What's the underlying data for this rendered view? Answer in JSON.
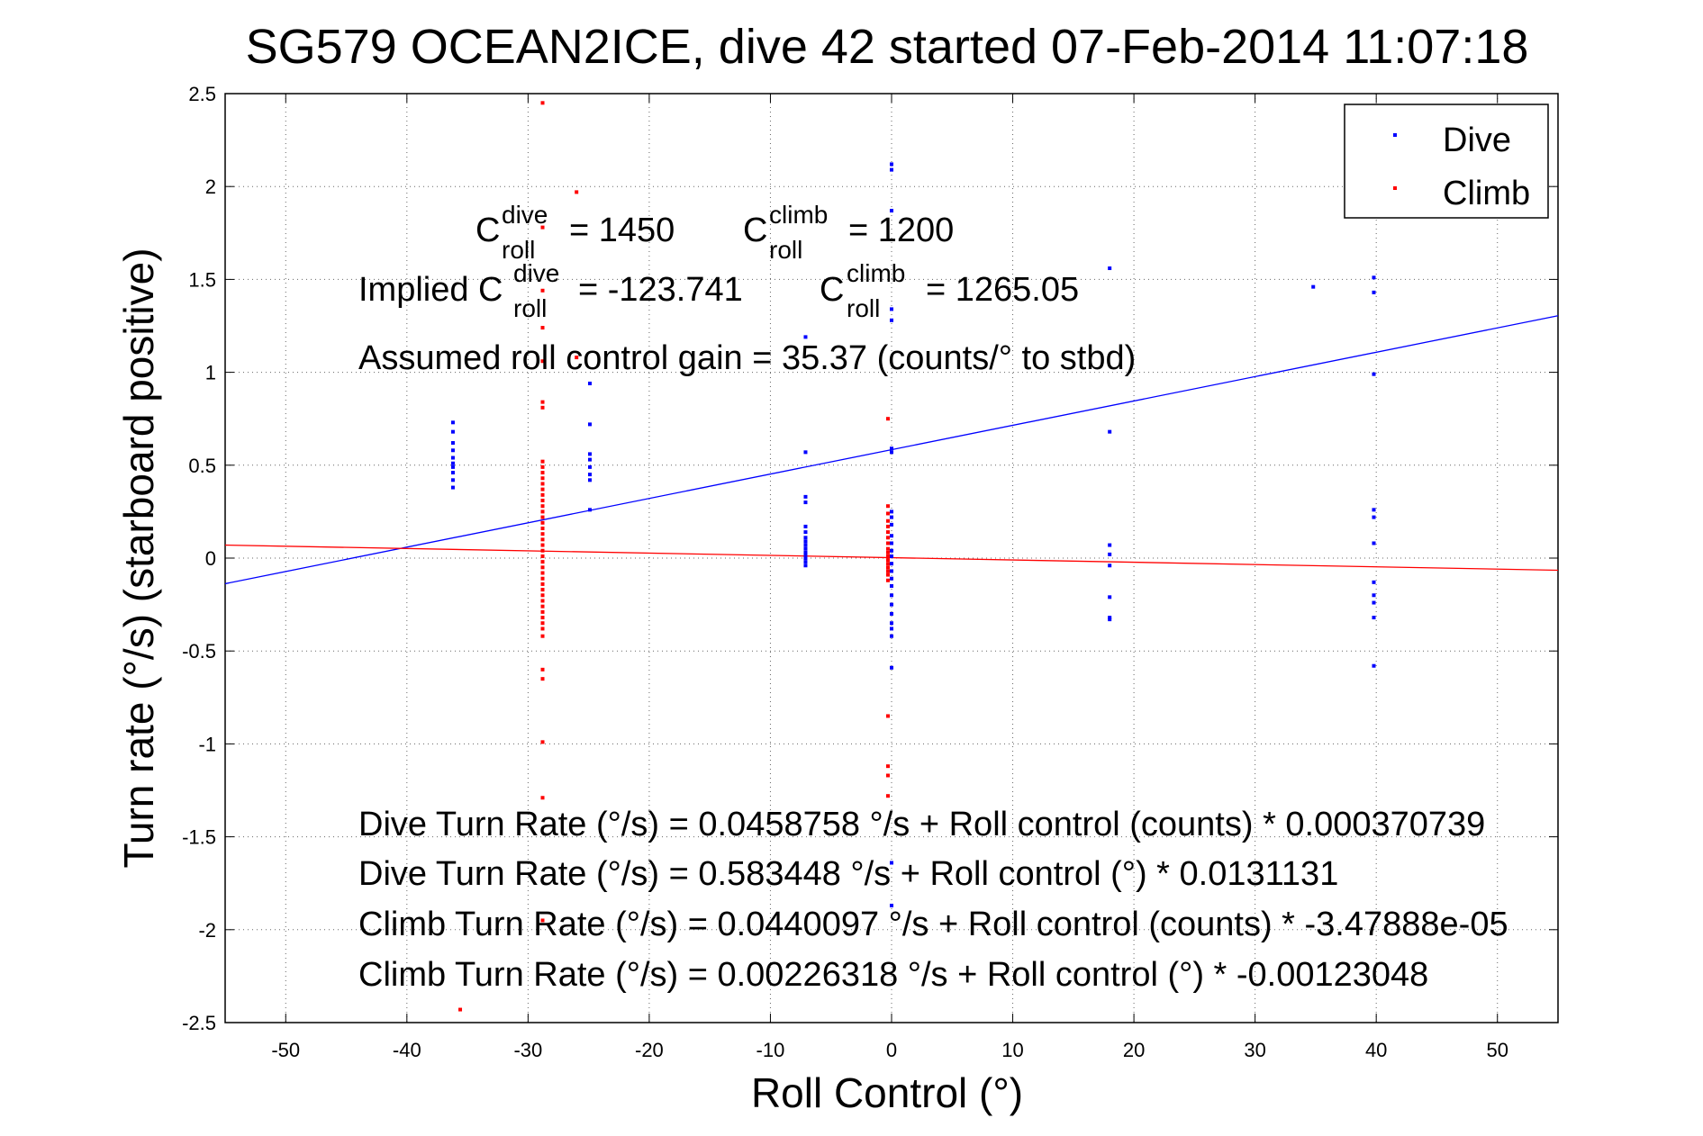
{
  "chart_data": {
    "type": "scatter",
    "title": "SG579 OCEAN2ICE, dive 42 started 07-Feb-2014 11:07:18",
    "xlabel": "Roll Control (°)",
    "ylabel": "Turn rate (°/s) (starboard positive)",
    "xlim": [
      -55,
      55
    ],
    "ylim": [
      -2.5,
      2.5
    ],
    "xticks": [
      -50,
      -40,
      -30,
      -20,
      -10,
      0,
      10,
      20,
      30,
      40,
      50
    ],
    "yticks": [
      -2.5,
      -2,
      -1.5,
      -1,
      -0.5,
      0,
      0.5,
      1,
      1.5,
      2,
      2.5
    ],
    "xtick_labels": [
      "-50",
      "-40",
      "-30",
      "-20",
      "-10",
      "0",
      "10",
      "20",
      "30",
      "40",
      "50"
    ],
    "ytick_labels": [
      "-2.5",
      "-2",
      "-1.5",
      "-1",
      "-0.5",
      "0",
      "0.5",
      "1",
      "1.5",
      "2",
      "2.5"
    ],
    "grid": true,
    "legend_position": "top-right",
    "series": [
      {
        "name": "Dive",
        "color": "#0000ff",
        "points": [
          [
            -36.2,
            0.73
          ],
          [
            -36.2,
            0.68
          ],
          [
            -36.2,
            0.62
          ],
          [
            -36.2,
            0.58
          ],
          [
            -36.2,
            0.54
          ],
          [
            -36.2,
            0.51
          ],
          [
            -36.2,
            0.49
          ],
          [
            -36.2,
            0.46
          ],
          [
            -36.2,
            0.42
          ],
          [
            -36.2,
            0.38
          ],
          [
            -24.9,
            0.94
          ],
          [
            -24.9,
            0.72
          ],
          [
            -24.9,
            0.56
          ],
          [
            -24.9,
            0.53
          ],
          [
            -24.9,
            0.49
          ],
          [
            -24.9,
            0.45
          ],
          [
            -24.9,
            0.42
          ],
          [
            -24.9,
            0.26
          ],
          [
            -7.1,
            1.19
          ],
          [
            -7.1,
            0.57
          ],
          [
            -7.1,
            0.33
          ],
          [
            -7.1,
            0.3
          ],
          [
            -7.1,
            0.17
          ],
          [
            -7.1,
            0.14
          ],
          [
            -7.1,
            0.11
          ],
          [
            -7.1,
            0.09
          ],
          [
            -7.1,
            0.07
          ],
          [
            -7.1,
            0.05
          ],
          [
            -7.1,
            0.03
          ],
          [
            -7.1,
            0.02
          ],
          [
            -7.1,
            0.0
          ],
          [
            -7.1,
            -0.02
          ],
          [
            -7.1,
            -0.04
          ],
          [
            0.0,
            2.12
          ],
          [
            0.0,
            2.09
          ],
          [
            0.0,
            1.87
          ],
          [
            0.0,
            1.34
          ],
          [
            0.0,
            1.28
          ],
          [
            0.0,
            0.59
          ],
          [
            0.0,
            0.57
          ],
          [
            0.0,
            0.25
          ],
          [
            0.0,
            0.22
          ],
          [
            0.0,
            0.18
          ],
          [
            0.0,
            0.12
          ],
          [
            0.0,
            0.08
          ],
          [
            0.0,
            0.04
          ],
          [
            0.0,
            0.01
          ],
          [
            0.0,
            -0.03
          ],
          [
            0.0,
            -0.07
          ],
          [
            0.0,
            -0.11
          ],
          [
            0.0,
            -0.15
          ],
          [
            0.0,
            -0.2
          ],
          [
            0.0,
            -0.25
          ],
          [
            0.0,
            -0.3
          ],
          [
            0.0,
            -0.35
          ],
          [
            0.0,
            -0.38
          ],
          [
            0.0,
            -0.42
          ],
          [
            0.0,
            -0.59
          ],
          [
            0.0,
            -1.64
          ],
          [
            0.0,
            -1.87
          ],
          [
            18.0,
            1.56
          ],
          [
            18.0,
            0.68
          ],
          [
            18.0,
            0.07
          ],
          [
            18.0,
            0.02
          ],
          [
            18.0,
            -0.04
          ],
          [
            18.0,
            -0.21
          ],
          [
            18.0,
            -0.32
          ],
          [
            18.0,
            -0.33
          ],
          [
            34.8,
            1.46
          ],
          [
            39.8,
            1.51
          ],
          [
            39.8,
            1.43
          ],
          [
            39.8,
            0.99
          ],
          [
            39.8,
            0.26
          ],
          [
            39.8,
            0.22
          ],
          [
            39.8,
            0.08
          ],
          [
            39.8,
            -0.13
          ],
          [
            39.8,
            -0.2
          ],
          [
            39.8,
            -0.24
          ],
          [
            39.8,
            -0.32
          ],
          [
            39.8,
            -0.58
          ]
        ],
        "fit": {
          "slope": 0.0131131,
          "intercept": 0.583448
        }
      },
      {
        "name": "Climb",
        "color": "#ff0000",
        "points": [
          [
            -28.8,
            2.45
          ],
          [
            -28.8,
            1.78
          ],
          [
            -28.8,
            1.44
          ],
          [
            -28.8,
            1.24
          ],
          [
            -28.8,
            1.06
          ],
          [
            -28.8,
            0.84
          ],
          [
            -28.8,
            0.81
          ],
          [
            -28.8,
            0.52
          ],
          [
            -28.8,
            0.49
          ],
          [
            -28.8,
            0.46
          ],
          [
            -28.8,
            0.43
          ],
          [
            -28.8,
            0.4
          ],
          [
            -28.8,
            0.37
          ],
          [
            -28.8,
            0.34
          ],
          [
            -28.8,
            0.31
          ],
          [
            -28.8,
            0.28
          ],
          [
            -28.8,
            0.25
          ],
          [
            -28.8,
            0.22
          ],
          [
            -28.8,
            0.19
          ],
          [
            -28.8,
            0.16
          ],
          [
            -28.8,
            0.13
          ],
          [
            -28.8,
            0.1
          ],
          [
            -28.8,
            0.07
          ],
          [
            -28.8,
            0.04
          ],
          [
            -28.8,
            0.01
          ],
          [
            -28.8,
            -0.02
          ],
          [
            -28.8,
            -0.05
          ],
          [
            -28.8,
            -0.08
          ],
          [
            -28.8,
            -0.11
          ],
          [
            -28.8,
            -0.14
          ],
          [
            -28.8,
            -0.17
          ],
          [
            -28.8,
            -0.2
          ],
          [
            -28.8,
            -0.23
          ],
          [
            -28.8,
            -0.26
          ],
          [
            -28.8,
            -0.29
          ],
          [
            -28.8,
            -0.32
          ],
          [
            -28.8,
            -0.35
          ],
          [
            -28.8,
            -0.38
          ],
          [
            -28.8,
            -0.42
          ],
          [
            -28.8,
            -0.6
          ],
          [
            -28.8,
            -0.65
          ],
          [
            -28.8,
            -0.99
          ],
          [
            -28.8,
            -1.29
          ],
          [
            -28.8,
            -1.95
          ],
          [
            -26.0,
            1.97
          ],
          [
            -26.0,
            1.08
          ],
          [
            -35.6,
            -2.43
          ],
          [
            -0.3,
            0.75
          ],
          [
            -0.3,
            0.28
          ],
          [
            -0.3,
            0.24
          ],
          [
            -0.3,
            0.2
          ],
          [
            -0.3,
            0.17
          ],
          [
            -0.3,
            0.14
          ],
          [
            -0.3,
            0.11
          ],
          [
            -0.3,
            0.08
          ],
          [
            -0.3,
            0.05
          ],
          [
            -0.3,
            0.03
          ],
          [
            -0.3,
            0.01
          ],
          [
            -0.3,
            -0.01
          ],
          [
            -0.3,
            -0.03
          ],
          [
            -0.3,
            -0.05
          ],
          [
            -0.3,
            -0.07
          ],
          [
            -0.3,
            -0.09
          ],
          [
            -0.3,
            -0.12
          ],
          [
            -0.3,
            -0.85
          ],
          [
            -0.3,
            -1.12
          ],
          [
            -0.3,
            -1.17
          ],
          [
            -0.3,
            -1.28
          ]
        ],
        "fit": {
          "slope": -0.00123048,
          "intercept": 0.00226318
        }
      }
    ],
    "annotations": {
      "c_roll_dive": {
        "c": "C",
        "sup": "dive",
        "sub": "roll",
        "value": "= 1450"
      },
      "c_roll_climb": {
        "c": "C",
        "sup": "climb",
        "sub": "roll",
        "value": "= 1200"
      },
      "implied_dive": {
        "prefix": "Implied C",
        "sup": "dive",
        "sub": "roll",
        "value": "= -123.741"
      },
      "implied_climb": {
        "c": "C",
        "sup": "climb",
        "sub": "roll",
        "value": "= 1265.05"
      },
      "gain": "Assumed roll control gain = 35.37 (counts/° to stbd)",
      "equations": [
        "Dive Turn Rate (°/s) = 0.0458758 °/s + Roll control (counts) * 0.000370739",
        "Dive Turn Rate (°/s) = 0.583448 °/s + Roll control (°) * 0.0131131",
        "Climb Turn Rate (°/s) = 0.0440097 °/s + Roll control (counts) * -3.47888e-05",
        "Climb Turn Rate (°/s) = 0.00226318 °/s + Roll control (°) * -0.00123048"
      ]
    }
  }
}
